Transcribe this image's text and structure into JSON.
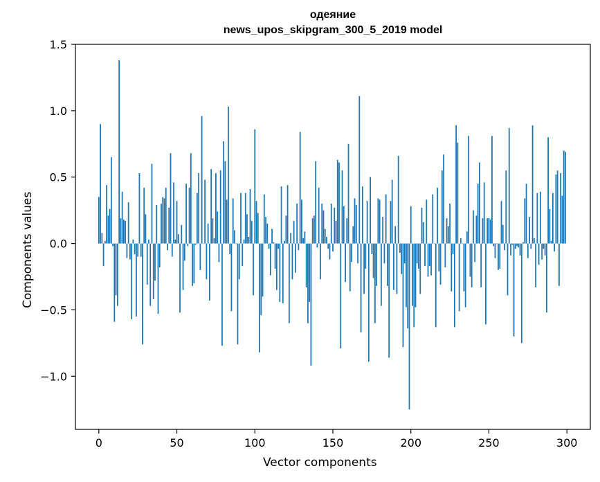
{
  "chart_data": {
    "type": "bar",
    "title": [
      "одеяние",
      "news_upos_skipgram_300_5_2019 model"
    ],
    "xlabel": "Vector components",
    "ylabel": "Components values",
    "xlim": [
      -15,
      315
    ],
    "ylim": [
      -1.4,
      1.5
    ],
    "xticks": [
      0,
      50,
      100,
      150,
      200,
      250,
      300
    ],
    "xtick_labels": [
      "0",
      "50",
      "100",
      "150",
      "200",
      "250",
      "300"
    ],
    "yticks": [
      -1.0,
      -0.5,
      0.0,
      0.5,
      1.0,
      1.5
    ],
    "ytick_labels": [
      "−1.0",
      "−0.5",
      "0.0",
      "0.5",
      "1.0",
      "1.5"
    ],
    "grid": false,
    "bar_color": "#1f77b4",
    "series": [
      {
        "x_start": 0,
        "values": [
          0.35,
          0.9,
          0.08,
          -0.17,
          0.02,
          0.44,
          0.21,
          0.26,
          0.65,
          -0.02,
          -0.59,
          -0.39,
          -0.47,
          1.38,
          0.19,
          0.39,
          0.18,
          0.17,
          -0.11,
          0.31,
          -0.12,
          -0.57,
          0.03,
          -0.08,
          -0.55,
          -0.1,
          0.53,
          -0.1,
          -0.76,
          0.42,
          0.22,
          -0.31,
          0.03,
          -0.47,
          0.6,
          -0.42,
          -0.28,
          0.29,
          -0.53,
          -0.18,
          0.3,
          0.35,
          0.34,
          0.42,
          -0.05,
          0.27,
          0.68,
          -0.1,
          0.46,
          0.03,
          0.32,
          0.07,
          -0.52,
          0.14,
          -0.35,
          -0.13,
          0.45,
          -0.02,
          0.42,
          0.68,
          -0.32,
          -0.3,
          -0.01,
          0.38,
          0.53,
          -0.2,
          0.96,
          0.0,
          0.48,
          -0.27,
          0.15,
          -0.43,
          0.56,
          0.19,
          0.04,
          0.53,
          0.24,
          -0.14,
          0.55,
          -0.77,
          0.77,
          0.62,
          0.33,
          1.03,
          -0.08,
          -0.51,
          0.34,
          0.1,
          0.0,
          -0.76,
          -0.27,
          0.38,
          -0.17,
          0.03,
          0.38,
          0.22,
          0.05,
          0.41,
          0.17,
          -0.39,
          0.86,
          0.32,
          0.23,
          -0.82,
          -0.54,
          -0.4,
          0.37,
          0.2,
          0.15,
          -0.04,
          -0.24,
          0.11,
          0.01,
          -0.19,
          -0.35,
          -0.04,
          -0.44,
          0.43,
          -0.45,
          0.02,
          0.21,
          0.44,
          -0.6,
          0.08,
          -0.27,
          0.17,
          -0.22,
          0.3,
          -0.05,
          0.84,
          0.33,
          0.04,
          0.09,
          -0.33,
          -0.6,
          -0.44,
          -0.92,
          0.19,
          0.21,
          0.62,
          -0.03,
          0.42,
          -0.27,
          0.3,
          0.25,
          0.11,
          0.05,
          -0.04,
          -0.12,
          0.3,
          -0.06,
          0.27,
          0.17,
          0.63,
          0.61,
          -0.79,
          0.55,
          0.28,
          -0.29,
          0.19,
          0.75,
          -0.36,
          -0.14,
          0.13,
          0.34,
          0.29,
          -0.15,
          1.11,
          -0.67,
          0.43,
          -0.38,
          -0.19,
          0.32,
          -0.89,
          0.5,
          -0.08,
          -0.26,
          -0.6,
          -0.32,
          0.34,
          0.33,
          -0.47,
          0.2,
          -0.15,
          0.37,
          -0.32,
          -0.86,
          0.32,
          0.48,
          -0.35,
          0.13,
          -0.38,
          0.66,
          -0.07,
          -0.23,
          -0.78,
          -0.15,
          -0.48,
          -0.64,
          -1.25,
          0.28,
          -0.47,
          -0.63,
          -0.48,
          -0.15,
          -0.19,
          -0.38,
          0.27,
          0.16,
          -0.17,
          0.33,
          -0.25,
          -0.17,
          -0.24,
          0.37,
          0.0,
          -0.63,
          0.42,
          -0.21,
          -0.31,
          0.55,
          0.67,
          -0.18,
          0.19,
          0.13,
          0.3,
          -0.36,
          -0.08,
          -0.63,
          0.89,
          0.76,
          -0.51,
          0.04,
          0.0,
          -0.36,
          -0.48,
          0.09,
          0.81,
          -0.25,
          -0.33,
          0.25,
          -0.14,
          0.21,
          0.45,
          0.61,
          -0.33,
          0.19,
          0.46,
          -0.61,
          0.19,
          0.19,
          0.18,
          0.81,
          -0.02,
          -0.11,
          0.0,
          -0.2,
          -0.19,
          0.32,
          0.14,
          -0.05,
          0.55,
          -0.39,
          0.87,
          -0.09,
          -0.01,
          -0.7,
          -0.04,
          -0.02,
          -0.03,
          -0.09,
          -0.75,
          0.01,
          0.34,
          0.45,
          -0.11,
          0.2,
          -0.04,
          0.89,
          0.04,
          -0.33,
          0.38,
          -0.16,
          0.39,
          -0.12,
          -0.04,
          -0.09,
          -0.52,
          0.8,
          0.26,
          0.02,
          0.38,
          -0.06,
          0.52,
          0.55,
          -0.32,
          0.53,
          0.36,
          0.7,
          0.69
        ]
      }
    ]
  }
}
